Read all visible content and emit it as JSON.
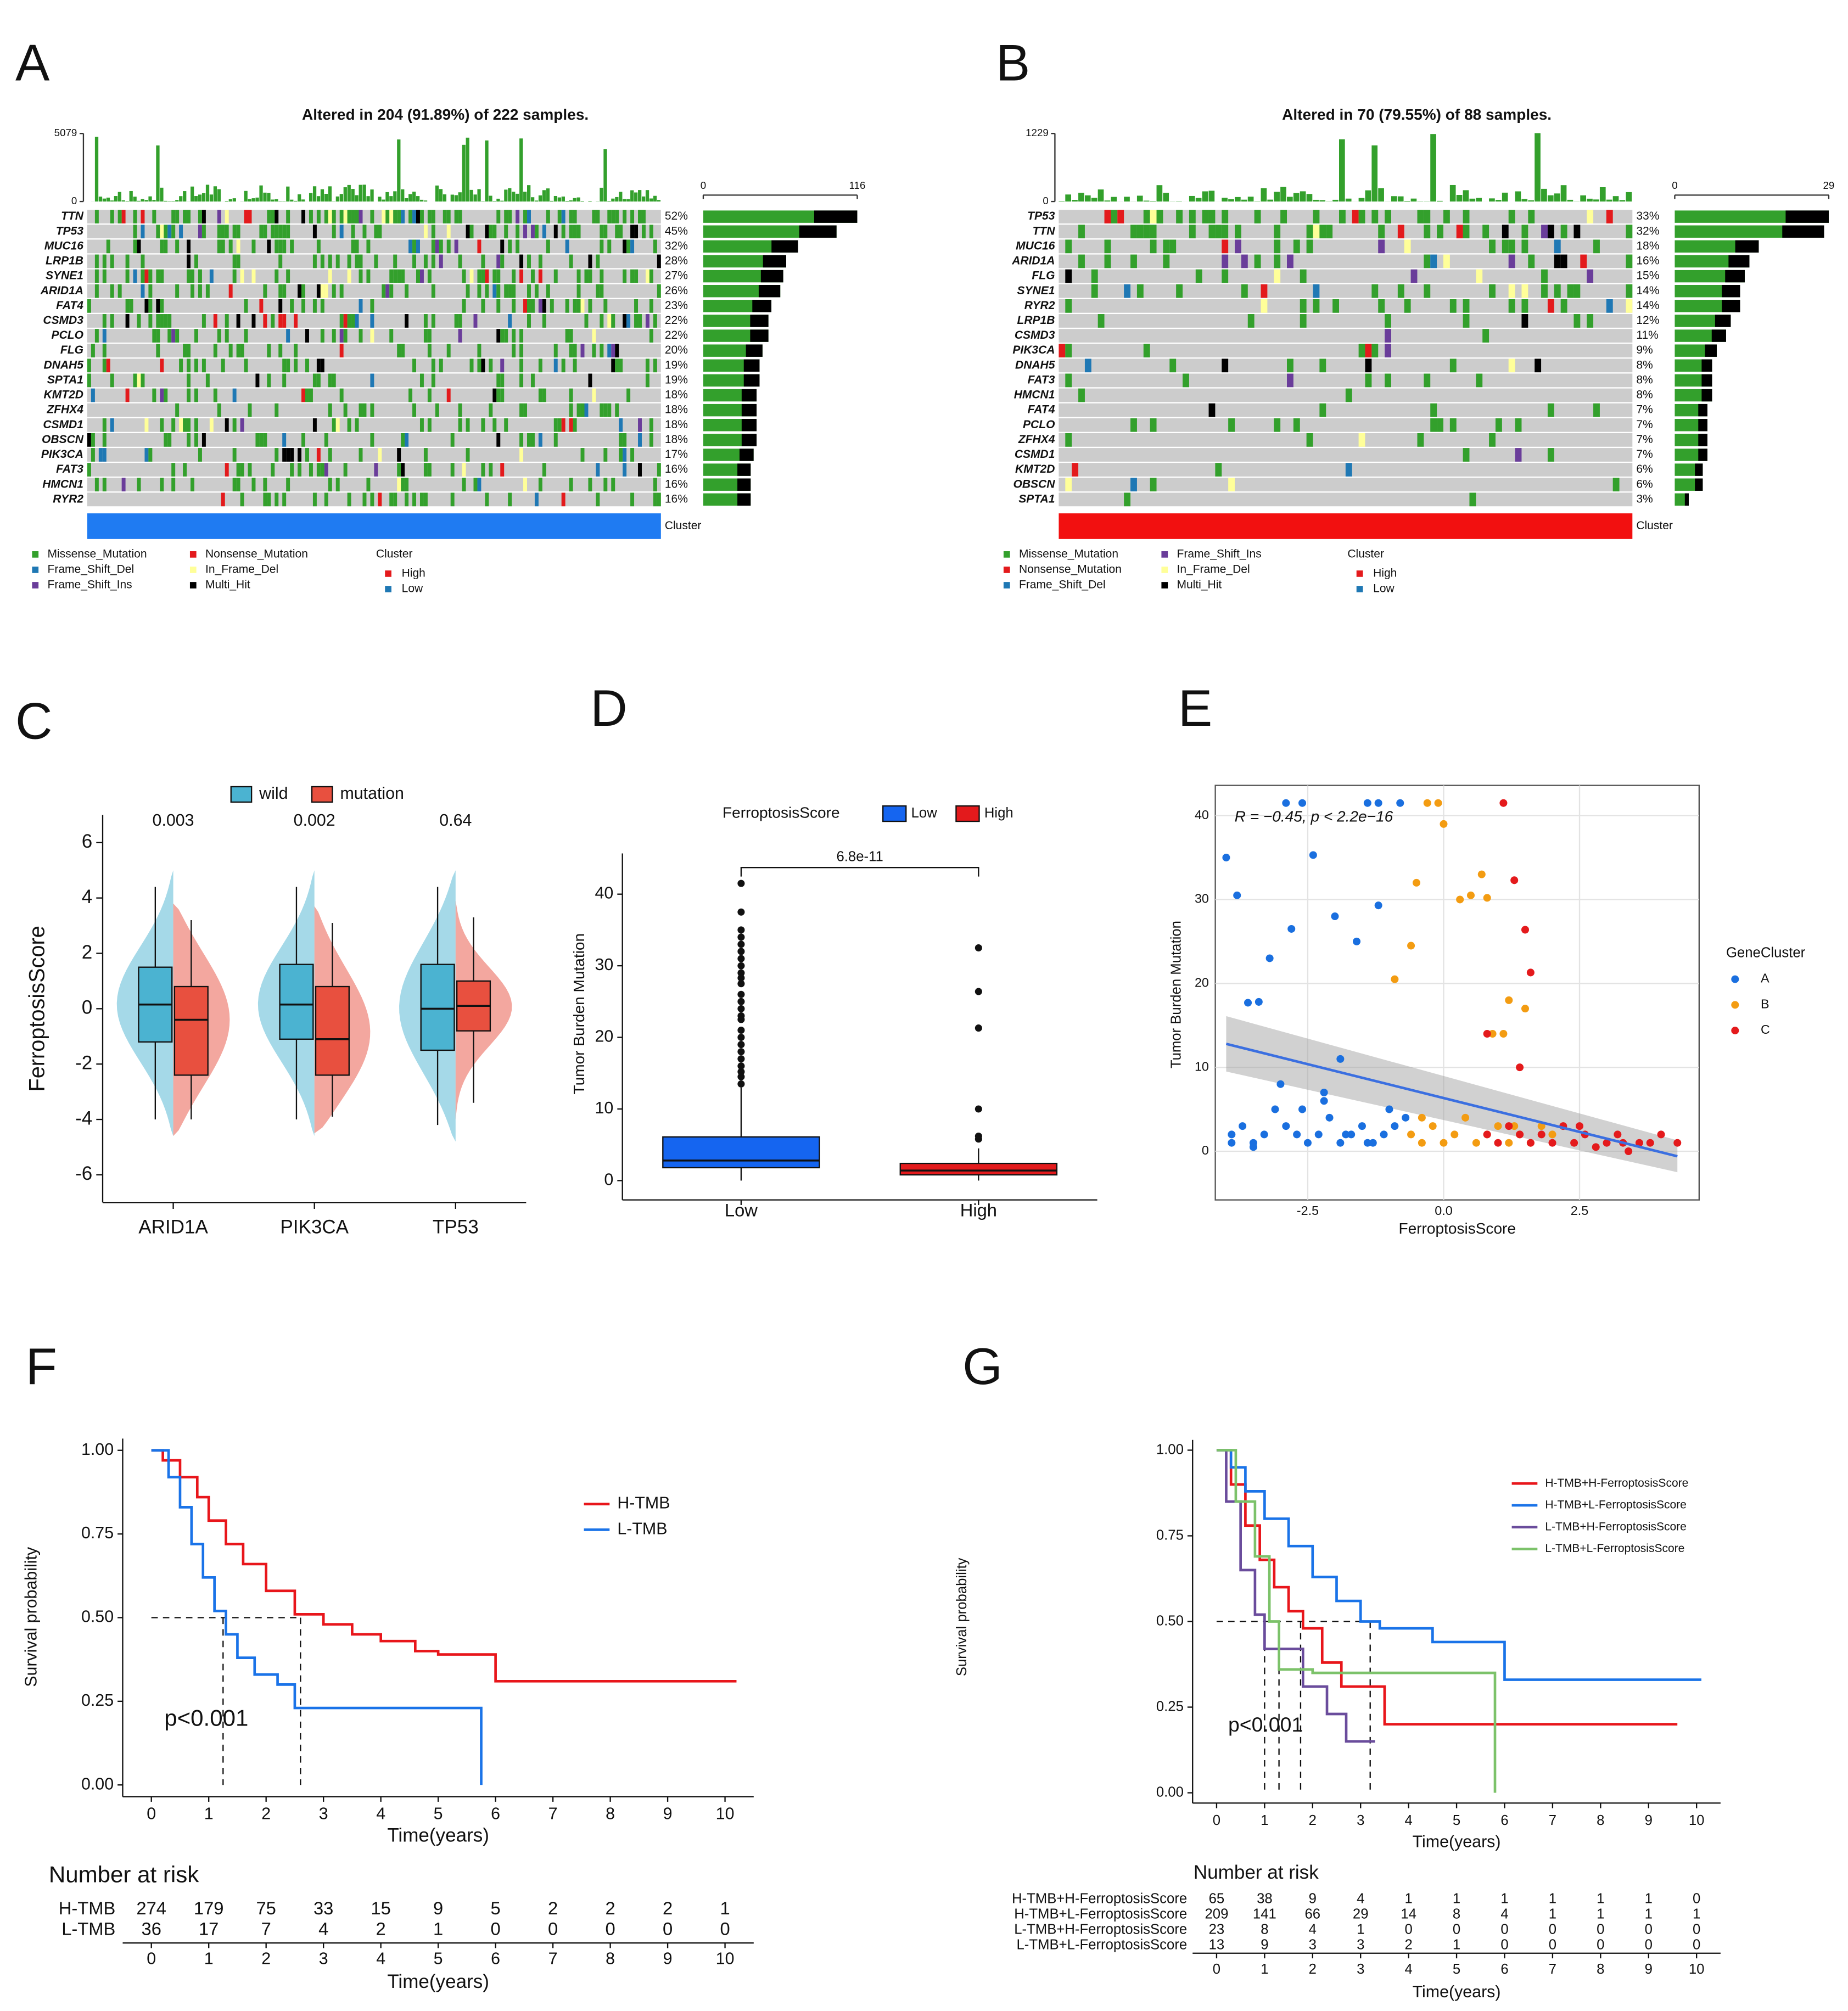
{
  "chart_data": [
    {
      "panel": "A",
      "type": "oncoplot",
      "title": "Altered in 204 (91.89%) of 222 samples.",
      "genes": [
        "TTN",
        "TP53",
        "MUC16",
        "LRP1B",
        "SYNE1",
        "ARID1A",
        "FAT4",
        "CSMD3",
        "PCLO",
        "FLG",
        "DNAH5",
        "SPTA1",
        "KMT2D",
        "ZFHX4",
        "CSMD1",
        "OBSCN",
        "PIK3CA",
        "FAT3",
        "HMCN1",
        "RYR2"
      ],
      "values": [
        52,
        45,
        32,
        28,
        27,
        26,
        23,
        22,
        22,
        20,
        19,
        19,
        18,
        18,
        18,
        18,
        17,
        16,
        16,
        16
      ],
      "value_labels": [
        "52%",
        "45%",
        "32%",
        "28%",
        "27%",
        "26%",
        "23%",
        "22%",
        "22%",
        "20%",
        "19%",
        "19%",
        "18%",
        "18%",
        "18%",
        "18%",
        "17%",
        "16%",
        "16%",
        "16%"
      ],
      "top_ticks": [
        0,
        5079
      ],
      "side_ticks": [
        0,
        116
      ],
      "cluster_label": "Cluster",
      "cluster_color": "#1f7bf2",
      "legend": [
        {
          "name": "Missense_Mutation",
          "color": "#33a02c"
        },
        {
          "name": "Frame_Shift_Del",
          "color": "#1f78b4"
        },
        {
          "name": "Frame_Shift_Ins",
          "color": "#6a3d9a"
        },
        {
          "name": "Nonsense_Mutation",
          "color": "#e31a1c"
        },
        {
          "name": "In_Frame_Del",
          "color": "#ffff99"
        },
        {
          "name": "Multi_Hit",
          "color": "#000000"
        }
      ],
      "cluster_legend": {
        "title": "Cluster",
        "items": [
          {
            "name": "High",
            "color": "#e41a1c"
          },
          {
            "name": "Low",
            "color": "#1f78b4"
          }
        ]
      }
    },
    {
      "panel": "B",
      "type": "oncoplot",
      "title": "Altered in 70 (79.55%) of 88 samples.",
      "genes": [
        "TP53",
        "TTN",
        "MUC16",
        "ARID1A",
        "FLG",
        "SYNE1",
        "RYR2",
        "LRP1B",
        "CSMD3",
        "PIK3CA",
        "DNAH5",
        "FAT3",
        "HMCN1",
        "FAT4",
        "PCLO",
        "ZFHX4",
        "CSMD1",
        "KMT2D",
        "OBSCN",
        "SPTA1"
      ],
      "values": [
        33,
        32,
        18,
        16,
        15,
        14,
        14,
        12,
        11,
        9,
        8,
        8,
        8,
        7,
        7,
        7,
        7,
        6,
        6,
        3
      ],
      "value_labels": [
        "33%",
        "32%",
        "18%",
        "16%",
        "15%",
        "14%",
        "14%",
        "12%",
        "11%",
        "9%",
        "8%",
        "8%",
        "8%",
        "7%",
        "7%",
        "7%",
        "7%",
        "6%",
        "6%",
        "3%"
      ],
      "top_ticks": [
        0,
        1229
      ],
      "side_ticks": [
        0,
        29
      ],
      "cluster_label": "Cluster",
      "cluster_color": "#f21010",
      "legend": [
        {
          "name": "Missense_Mutation",
          "color": "#33a02c"
        },
        {
          "name": "Nonsense_Mutation",
          "color": "#e31a1c"
        },
        {
          "name": "Frame_Shift_Del",
          "color": "#1f78b4"
        },
        {
          "name": "Frame_Shift_Ins",
          "color": "#6a3d9a"
        },
        {
          "name": "In_Frame_Del",
          "color": "#ffff99"
        },
        {
          "name": "Multi_Hit",
          "color": "#000000"
        }
      ],
      "cluster_legend": {
        "title": "Cluster",
        "items": [
          {
            "name": "High",
            "color": "#e41a1c"
          },
          {
            "name": "Low",
            "color": "#1f78b4"
          }
        ]
      }
    },
    {
      "panel": "C",
      "type": "split_violin",
      "ylabel": "FerroptosisScore",
      "categories": [
        "ARID1A",
        "PIK3CA",
        "TP53"
      ],
      "pvalues": [
        0.003,
        0.002,
        0.64
      ],
      "ylim": [
        -7,
        7
      ],
      "yticks": [
        -6,
        -4,
        -2,
        0,
        2,
        4,
        6
      ],
      "series": [
        {
          "name": "wild",
          "color": "#4bb3d1",
          "boxes": [
            [
              -4,
              -1.2,
              0.15,
              1.5,
              4.4
            ],
            [
              -4,
              -1.1,
              0.15,
              1.6,
              4.4
            ],
            [
              -4.2,
              -1.5,
              0,
              1.6,
              4.4
            ]
          ]
        },
        {
          "name": "mutation",
          "color": "#e8503f",
          "boxes": [
            [
              -4,
              -2.4,
              -0.4,
              0.8,
              3.2
            ],
            [
              -3.9,
              -2.4,
              -1.1,
              0.8,
              3.1
            ],
            [
              -3.4,
              -0.8,
              0.1,
              1,
              3.3
            ]
          ]
        }
      ]
    },
    {
      "panel": "D",
      "type": "box",
      "ylabel": "Tumor Burden Mutation",
      "legend_title": "FerroptosisScore",
      "annotation": "6.8e-11",
      "categories": [
        "Low",
        "High"
      ],
      "ylim": [
        -2.7,
        43
      ],
      "yticks": [
        0,
        10,
        20,
        30,
        40
      ],
      "series": [
        {
          "name": "Low",
          "color": "#1565f0",
          "box": [
            0,
            1.8,
            2.8,
            6.1,
            13
          ],
          "outliers": [
            13.5,
            14.5,
            15.2,
            16,
            17,
            18,
            19,
            20,
            21,
            22.5,
            23,
            24,
            25,
            26,
            27.5,
            28.3,
            29,
            30,
            31,
            32,
            33,
            34,
            35,
            37.5,
            41.5
          ]
        },
        {
          "name": "High",
          "color": "#e31a1c",
          "box": [
            0,
            0.8,
            1.4,
            2.4,
            4.5
          ],
          "outliers": [
            5.8,
            6.2,
            10,
            21.3,
            26.4,
            32.5
          ]
        }
      ]
    },
    {
      "panel": "E",
      "type": "scatter",
      "xlabel": "FerroptosisScore",
      "ylabel": "Tumor Burden Mutation",
      "legend_title": "GeneCluster",
      "annotation": "R = −0.45, p < 2.2e−16",
      "xlim": [
        -4.2,
        4.7
      ],
      "ylim": [
        -5.8,
        43.6
      ],
      "xticks": [
        -2.5,
        {
          "value": 0,
          "label": "0.0"
        },
        2.5
      ],
      "yticks": [
        0,
        10,
        20,
        30,
        40
      ],
      "grid": true,
      "fit": {
        "color": "#3b6fe0",
        "x": [
          -4,
          4.3
        ],
        "y": [
          12.8,
          -0.6
        ],
        "ci_low": [
          9.5,
          -2.5
        ],
        "ci_high": [
          16.1,
          1.3
        ]
      },
      "series": [
        {
          "name": "A",
          "color": "#1a6fdf",
          "x": [
            -4.0,
            -3.9,
            -3.7,
            -3.5,
            -3.3,
            -3.1,
            -2.9,
            -2.7,
            -2.5,
            -2.3,
            -2.1,
            -1.9,
            -1.7,
            -1.5,
            -1.3,
            -1.1,
            -0.9,
            -0.7,
            -3.8,
            -3.4,
            -3.0,
            -2.6,
            -2.2,
            -1.8,
            -1.4,
            -1.0,
            -3.6,
            -3.2,
            -2.8,
            -2.4,
            -2.0,
            -1.6,
            -1.2,
            -3.9,
            -3.5,
            -2.9,
            -2.6,
            -2.2,
            -1.9,
            -1.4,
            -1.2,
            -0.8
          ],
          "y": [
            35,
            2,
            3,
            1,
            2,
            5,
            3,
            2,
            1,
            2,
            4,
            1,
            2,
            3,
            1,
            2,
            3,
            4,
            30.5,
            17.8,
            8,
            5,
            6,
            2,
            1,
            5,
            17.7,
            23,
            26.5,
            35.3,
            28,
            25,
            29.3,
            1,
            0.5,
            41.5,
            41.5,
            7,
            11,
            41.5,
            41.5,
            41.5
          ]
        },
        {
          "name": "B",
          "color": "#f39c12",
          "x": [
            -0.6,
            -0.4,
            -0.2,
            0,
            0.2,
            0.4,
            0.6,
            0.8,
            1.0,
            1.2,
            1.4,
            1.6,
            1.8,
            2.0,
            -0.5,
            -0.1,
            0.3,
            0.7,
            1.1,
            1.5,
            -0.6,
            -0.3,
            0,
            0.5,
            0.8,
            1.2,
            -0.9,
            -0.4,
            0.9,
            1.3
          ],
          "y": [
            2,
            1,
            3,
            1,
            2,
            4,
            1,
            2,
            3,
            1,
            2,
            1,
            3,
            2,
            32,
            41.5,
            30,
            33,
            14,
            17,
            24.5,
            41.5,
            39,
            30.5,
            30.2,
            18,
            20.5,
            4,
            14,
            3
          ]
        },
        {
          "name": "C",
          "color": "#e41a1c",
          "x": [
            0.8,
            1.0,
            1.2,
            1.4,
            1.6,
            1.8,
            2.0,
            2.2,
            2.4,
            2.6,
            2.8,
            3.0,
            3.2,
            3.4,
            3.6,
            3.8,
            4.0,
            4.3,
            1.1,
            1.3,
            1.5,
            1.6,
            0.8,
            1.4,
            2.5,
            3.3
          ],
          "y": [
            2,
            1,
            3,
            2,
            1,
            2,
            1,
            3,
            1,
            2,
            0.5,
            1,
            2,
            0,
            1,
            1,
            2,
            1,
            41.5,
            32.3,
            26.4,
            21.3,
            14,
            10,
            3,
            1
          ]
        }
      ]
    },
    {
      "panel": "F",
      "type": "survival",
      "xlabel": "Time(years)",
      "ylabel": "Survival probability",
      "annotation": "p<0.001",
      "xlim": [
        -0.5,
        10.5
      ],
      "ylim": [
        -0.035,
        1.035
      ],
      "xticks": [
        0,
        1,
        2,
        3,
        4,
        5,
        6,
        7,
        8,
        9,
        10
      ],
      "yticks": [
        {
          "value": 0,
          "label": "0.00"
        },
        {
          "value": 0.25,
          "label": "0.25"
        },
        {
          "value": 0.5,
          "label": "0.50"
        },
        {
          "value": 0.75,
          "label": "0.75"
        },
        {
          "value": 1,
          "label": "1.00"
        }
      ],
      "hline": 0.5,
      "medians": [
        1.25,
        2.6
      ],
      "series": [
        {
          "name": "H-TMB",
          "color": "#e8161b",
          "time": [
            0,
            0.2,
            0.5,
            0.8,
            1,
            1.3,
            1.6,
            2,
            2.5,
            3,
            3.5,
            4,
            4.6,
            5,
            6,
            7,
            8,
            9,
            10.2
          ],
          "survival": [
            1,
            0.97,
            0.92,
            0.86,
            0.79,
            0.72,
            0.66,
            0.58,
            0.51,
            0.48,
            0.45,
            0.43,
            0.4,
            0.39,
            0.31,
            0.31,
            0.31,
            0.31,
            0.31
          ]
        },
        {
          "name": "L-TMB",
          "color": "#1a73e8",
          "time": [
            0,
            0.3,
            0.5,
            0.7,
            0.9,
            1.1,
            1.3,
            1.5,
            1.8,
            2.2,
            2.5,
            3.5,
            4.5,
            5.7,
            5.75
          ],
          "survival": [
            1,
            0.92,
            0.83,
            0.72,
            0.62,
            0.52,
            0.45,
            0.38,
            0.33,
            0.3,
            0.23,
            0.23,
            0.23,
            0.23,
            0
          ]
        }
      ],
      "risk_table": {
        "title": "Number at risk",
        "rows": [
          [
            274,
            179,
            75,
            33,
            15,
            9,
            5,
            2,
            2,
            2,
            1
          ],
          [
            36,
            17,
            7,
            4,
            2,
            1,
            0,
            0,
            0,
            0,
            0
          ]
        ]
      }
    },
    {
      "panel": "G",
      "type": "survival",
      "xlabel": "Time(years)",
      "ylabel": "Survival probability",
      "annotation": "p<0.001",
      "xlim": [
        -0.5,
        10.5
      ],
      "ylim": [
        -0.03,
        1.03
      ],
      "xticks": [
        0,
        1,
        2,
        3,
        4,
        5,
        6,
        7,
        8,
        9,
        10
      ],
      "yticks": [
        {
          "value": 0,
          "label": "0.00"
        },
        {
          "value": 0.25,
          "label": "0.25"
        },
        {
          "value": 0.5,
          "label": "0.50"
        },
        {
          "value": 0.75,
          "label": "0.75"
        },
        {
          "value": 1,
          "label": "1.00"
        }
      ],
      "hline": 0.5,
      "medians": [
        1,
        1.3,
        1.75,
        3.2
      ],
      "series": [
        {
          "name": "H-TMB+H-FerroptosisScore",
          "color": "#e8161b",
          "time": [
            0,
            0.3,
            0.6,
            0.9,
            1.2,
            1.5,
            1.8,
            2.2,
            2.6,
            3.2,
            3.5,
            9.6
          ],
          "survival": [
            1,
            0.9,
            0.78,
            0.68,
            0.6,
            0.53,
            0.48,
            0.38,
            0.31,
            0.31,
            0.2,
            0.2
          ]
        },
        {
          "name": "H-TMB+L-FerroptosisScore",
          "color": "#1a73e8",
          "time": [
            0,
            0.3,
            0.6,
            1,
            1.5,
            2,
            2.5,
            3,
            3.4,
            4.5,
            6,
            10.1
          ],
          "survival": [
            1,
            0.95,
            0.88,
            0.8,
            0.72,
            0.63,
            0.56,
            0.5,
            0.48,
            0.44,
            0.33,
            0.33
          ]
        },
        {
          "name": "L-TMB+H-FerroptosisScore",
          "color": "#6a4c9c",
          "time": [
            0,
            0.2,
            0.5,
            0.8,
            1,
            1.5,
            1.8,
            2.3,
            2.7,
            3.3
          ],
          "survival": [
            1,
            0.85,
            0.65,
            0.52,
            0.42,
            0.42,
            0.31,
            0.23,
            0.15,
            0.15
          ]
        },
        {
          "name": "L-TMB+L-FerroptosisScore",
          "color": "#7cc26a",
          "time": [
            0,
            0.4,
            0.8,
            1.1,
            1.3,
            2,
            3.2,
            5.75,
            5.8
          ],
          "survival": [
            1,
            0.85,
            0.69,
            0.5,
            0.36,
            0.35,
            0.35,
            0.35,
            0
          ]
        }
      ],
      "risk_table": {
        "title": "Number at risk",
        "rows": [
          [
            65,
            38,
            9,
            4,
            1,
            1,
            1,
            1,
            1,
            1,
            0
          ],
          [
            209,
            141,
            66,
            29,
            14,
            8,
            4,
            1,
            1,
            1,
            1
          ],
          [
            23,
            8,
            4,
            1,
            0,
            0,
            0,
            0,
            0,
            0,
            0
          ],
          [
            13,
            9,
            3,
            3,
            2,
            1,
            0,
            0,
            0,
            0,
            0
          ]
        ]
      }
    }
  ]
}
